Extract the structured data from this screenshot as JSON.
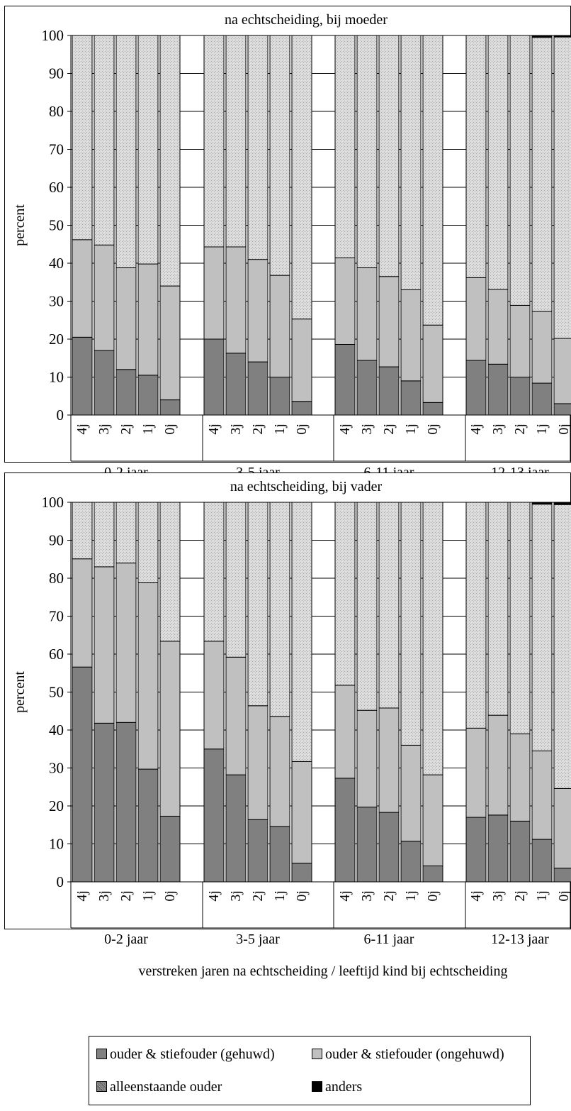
{
  "ylabel": "percent",
  "xlabel": "verstreken jaren na echtscheiding / leeftijd kind bij echtscheiding",
  "legend": [
    {
      "label": "ouder & stiefouder (gehuwd)",
      "color": "#808080"
    },
    {
      "label": "ouder & stiefouder (ongehuwd)",
      "color": "#c0c0c0"
    },
    {
      "label": "alleenstaande ouder",
      "color": "#d9d9d9"
    },
    {
      "label": "anders",
      "color": "#000000"
    }
  ],
  "chart_data": [
    {
      "type": "bar",
      "stacked": true,
      "title": "na echtscheiding, bij moeder",
      "ylabel": "percent",
      "ylim": [
        0,
        100
      ],
      "yticks": [
        0,
        10,
        20,
        30,
        40,
        50,
        60,
        70,
        80,
        90,
        100
      ],
      "groups": [
        "0-2 jaar",
        "3-5 jaar",
        "6-11 jaar",
        "12-13 jaar"
      ],
      "categories": [
        "4j",
        "3j",
        "2j",
        "1j",
        "0j"
      ],
      "series": [
        {
          "name": "ouder & stiefouder (gehuwd)",
          "values": [
            [
              20.5,
              17,
              12,
              10.5,
              4
            ],
            [
              20,
              16.3,
              14,
              10,
              3.6
            ],
            [
              18.6,
              14.4,
              12.7,
              9,
              3.3
            ],
            [
              14.4,
              13.4,
              10,
              8.4,
              3
            ]
          ]
        },
        {
          "name": "ouder & stiefouder (ongehuwd)",
          "values": [
            [
              25.7,
              27.8,
              26.8,
              29.3,
              30
            ],
            [
              24.3,
              28,
              27,
              26.8,
              21.7
            ],
            [
              22.8,
              24.4,
              23.8,
              24,
              20.4
            ],
            [
              21.8,
              19.7,
              18.9,
              18.9,
              17.2
            ]
          ]
        },
        {
          "name": "alleenstaande ouder",
          "values": [
            [
              53.8,
              55.2,
              61.2,
              60.2,
              66
            ],
            [
              55.7,
              55.7,
              59,
              63.2,
              74.7
            ],
            [
              58.6,
              61.2,
              63.5,
              67,
              76.3
            ],
            [
              63.8,
              66.9,
              71.1,
              72.2,
              79.4
            ]
          ]
        },
        {
          "name": "anders",
          "values": [
            [
              0,
              0,
              0,
              0,
              0
            ],
            [
              0,
              0,
              0,
              0,
              0
            ],
            [
              0,
              0,
              0,
              0,
              0
            ],
            [
              0,
              0,
              0,
              0.5,
              0.4
            ]
          ]
        }
      ]
    },
    {
      "type": "bar",
      "stacked": true,
      "title": "na echtscheiding, bij vader",
      "ylabel": "percent",
      "ylim": [
        0,
        100
      ],
      "yticks": [
        0,
        10,
        20,
        30,
        40,
        50,
        60,
        70,
        80,
        90,
        100
      ],
      "groups": [
        "0-2 jaar",
        "3-5 jaar",
        "6-11 jaar",
        "12-13 jaar"
      ],
      "categories": [
        "4j",
        "3j",
        "2j",
        "1j",
        "0j"
      ],
      "series": [
        {
          "name": "ouder & stiefouder (gehuwd)",
          "values": [
            [
              56.6,
              41.8,
              42,
              29.7,
              17.3
            ],
            [
              35,
              28.2,
              16.4,
              14.6,
              4.9
            ],
            [
              27.3,
              19.7,
              18.3,
              10.7,
              4.2
            ],
            [
              17,
              17.6,
              16,
              11.2,
              3.6
            ]
          ]
        },
        {
          "name": "ouder & stiefouder (ongehuwd)",
          "values": [
            [
              28.5,
              41.2,
              42,
              49.1,
              46.1
            ],
            [
              28.4,
              31,
              30,
              29,
              26.8
            ],
            [
              24.5,
              25.5,
              27.5,
              25.3,
              24
            ],
            [
              23.5,
              26.3,
              23,
              23.3,
              21
            ]
          ]
        },
        {
          "name": "alleenstaande ouder",
          "values": [
            [
              14.9,
              17,
              16,
              21.2,
              36.6
            ],
            [
              36.6,
              40.8,
              53.6,
              56.4,
              68.3
            ],
            [
              48.2,
              54.8,
              54.2,
              64,
              71.8
            ],
            [
              59.5,
              56.1,
              61,
              65,
              74.8
            ]
          ]
        },
        {
          "name": "anders",
          "values": [
            [
              0,
              0,
              0,
              0,
              0
            ],
            [
              0,
              0,
              0,
              0,
              0
            ],
            [
              0,
              0,
              0,
              0,
              0
            ],
            [
              0,
              0,
              0,
              0.5,
              0.6
            ]
          ]
        }
      ]
    }
  ]
}
